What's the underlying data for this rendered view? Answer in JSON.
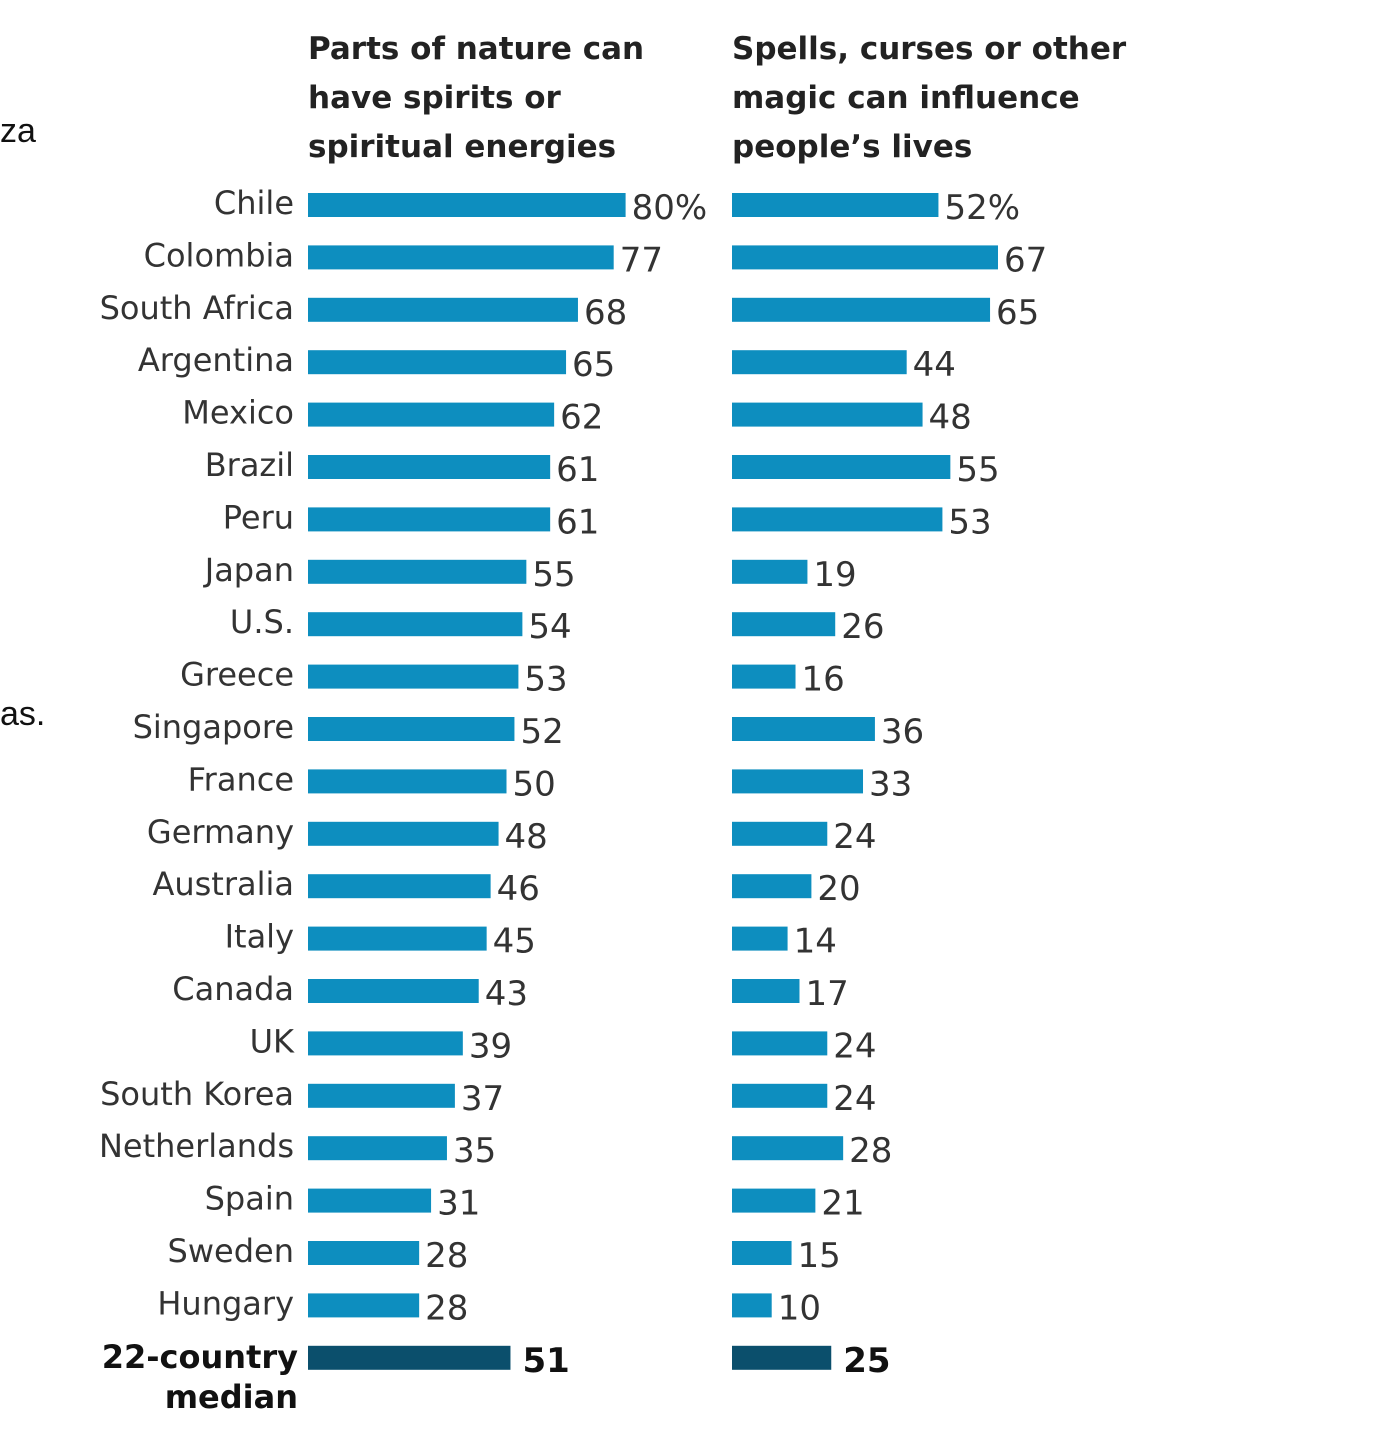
{
  "fragments": {
    "left_top": "za",
    "left_mid": "as."
  },
  "colors": {
    "bar": "#0d8ebf",
    "median_bar": "#0b4f6c"
  },
  "chart_data": {
    "type": "bar",
    "orientation": "horizontal",
    "title": "",
    "categories": [
      "Chile",
      "Colombia",
      "South Africa",
      "Argentina",
      "Mexico",
      "Brazil",
      "Peru",
      "Japan",
      "U.S.",
      "Greece",
      "Singapore",
      "France",
      "Germany",
      "Australia",
      "Italy",
      "Canada",
      "UK",
      "South Korea",
      "Netherlands",
      "Spain",
      "Sweden",
      "Hungary"
    ],
    "series": [
      {
        "name": "Parts of nature can have spirits or spiritual energies",
        "title_lines": [
          "Parts of nature can",
          "have spirits or",
          "spiritual energies"
        ],
        "values": [
          80,
          77,
          68,
          65,
          62,
          61,
          61,
          55,
          54,
          53,
          52,
          50,
          48,
          46,
          45,
          43,
          39,
          37,
          35,
          31,
          28,
          28
        ],
        "median": 51
      },
      {
        "name": "Spells, curses or other magic can influence people’s lives",
        "title_lines": [
          "Spells, curses or other",
          "magic can influence",
          "people’s lives"
        ],
        "values": [
          52,
          67,
          65,
          44,
          48,
          55,
          53,
          19,
          26,
          16,
          36,
          33,
          24,
          20,
          14,
          17,
          24,
          24,
          28,
          21,
          15,
          10
        ],
        "median": 25
      }
    ],
    "first_value_suffix": "%",
    "median_label_lines": [
      "22-country",
      "median"
    ],
    "grid": false,
    "legend": "none"
  }
}
